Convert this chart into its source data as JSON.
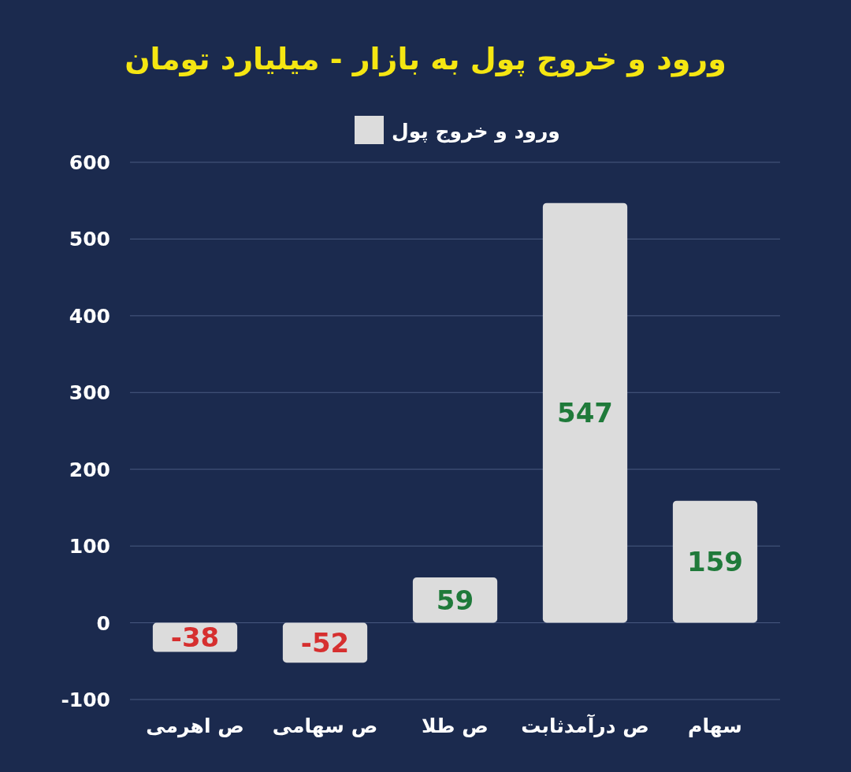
{
  "chart_data": {
    "type": "bar",
    "title": "ورود و خروج پول به بازار - میلیارد تومان",
    "categories": [
      "ص اهرمی",
      "ص سهامی",
      "ص طلا",
      "ص درآمدثابت",
      "سهام"
    ],
    "series": [
      {
        "name": "ورود و خروج پول",
        "color": "#dcdcdc",
        "values": [
          -38,
          -52,
          59,
          547,
          159
        ]
      }
    ],
    "ylim": [
      -100,
      600
    ],
    "yticks": [
      -100,
      0,
      100,
      200,
      300,
      400,
      500,
      600
    ],
    "grid": "y",
    "legend": "top",
    "data_labels": true
  }
}
